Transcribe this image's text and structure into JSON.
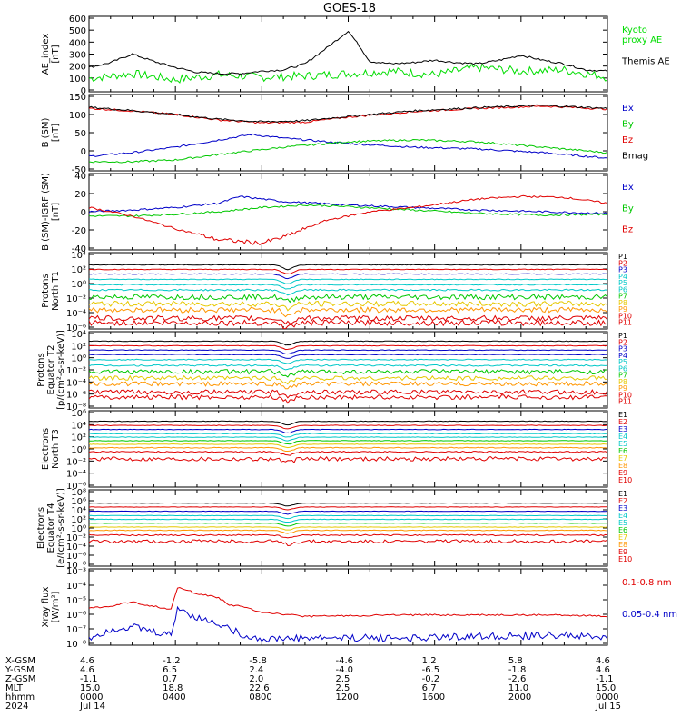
{
  "title": "GOES-18",
  "colors": {
    "black": "#000000",
    "red": "#e00000",
    "green": "#00c800",
    "blue": "#0000c8",
    "kyoto": "#00dd00",
    "cyan": "#00c8c8",
    "yellow": "#e6c800",
    "orange": "#ff9600"
  },
  "chart_data": [
    {
      "type": "line",
      "id": "ae",
      "ylabel": "AE_index\n[nT]",
      "yticks": [
        "600",
        "500",
        "400",
        "300",
        "200",
        "100",
        "0"
      ],
      "ylim": [
        0,
        620
      ],
      "series": [
        {
          "name": "Kyoto\nproxy AE",
          "color": "#00dd00",
          "points": [
            [
              0,
              110
            ],
            [
              2,
              150
            ],
            [
              4,
              100
            ],
            [
              6,
              140
            ],
            [
              8,
              120
            ],
            [
              10,
              130
            ],
            [
              12,
              150
            ],
            [
              14,
              170
            ],
            [
              16,
              140
            ],
            [
              18,
              200
            ],
            [
              20,
              170
            ],
            [
              22,
              180
            ],
            [
              24,
              120
            ]
          ]
        },
        {
          "name": "Themis AE",
          "color": "#000000",
          "points": [
            [
              0,
              200
            ],
            [
              1,
              240
            ],
            [
              2,
              310
            ],
            [
              3,
              250
            ],
            [
              4,
              200
            ],
            [
              5,
              160
            ],
            [
              6,
              150
            ],
            [
              7,
              150
            ],
            [
              8,
              170
            ],
            [
              9,
              180
            ],
            [
              10,
              230
            ],
            [
              11,
              360
            ],
            [
              12,
              500
            ],
            [
              12.5,
              380
            ],
            [
              13,
              250
            ],
            [
              14,
              230
            ],
            [
              15,
              240
            ],
            [
              16,
              260
            ],
            [
              17,
              240
            ],
            [
              18,
              230
            ],
            [
              19,
              260
            ],
            [
              20,
              300
            ],
            [
              21,
              260
            ],
            [
              22,
              230
            ],
            [
              23,
              180
            ],
            [
              24,
              170
            ]
          ]
        }
      ]
    },
    {
      "type": "line",
      "id": "b",
      "ylabel": "B (SM)\n[nT]",
      "yticks": [
        "150",
        "100",
        "50",
        "0",
        "-50"
      ],
      "ylim": [
        -60,
        150
      ],
      "series": [
        {
          "name": "Bx",
          "color": "#0000c8",
          "points": [
            [
              0,
              -20
            ],
            [
              2,
              -10
            ],
            [
              4,
              5
            ],
            [
              6,
              25
            ],
            [
              7.5,
              40
            ],
            [
              9,
              30
            ],
            [
              12,
              15
            ],
            [
              15,
              5
            ],
            [
              18,
              0
            ],
            [
              21,
              -10
            ],
            [
              24,
              -25
            ]
          ]
        },
        {
          "name": "By",
          "color": "#00c800",
          "points": [
            [
              0,
              -35
            ],
            [
              2,
              -35
            ],
            [
              4,
              -30
            ],
            [
              6,
              -15
            ],
            [
              9,
              5
            ],
            [
              12,
              20
            ],
            [
              15,
              25
            ],
            [
              18,
              20
            ],
            [
              21,
              5
            ],
            [
              24,
              -10
            ]
          ]
        },
        {
          "name": "Bz",
          "color": "#e00000",
          "points": [
            [
              0,
              112
            ],
            [
              2,
              105
            ],
            [
              4,
              95
            ],
            [
              6,
              80
            ],
            [
              8,
              72
            ],
            [
              10,
              74
            ],
            [
              12,
              88
            ],
            [
              15,
              103
            ],
            [
              18,
              112
            ],
            [
              21,
              118
            ],
            [
              24,
              110
            ]
          ]
        },
        {
          "name": "Bmag",
          "color": "#000000",
          "points": [
            [
              0,
              115
            ],
            [
              2,
              106
            ],
            [
              4,
              95
            ],
            [
              6,
              82
            ],
            [
              8,
              75
            ],
            [
              10,
              78
            ],
            [
              12,
              90
            ],
            [
              15,
              105
            ],
            [
              18,
              114
            ],
            [
              21,
              120
            ],
            [
              24,
              112
            ]
          ]
        }
      ]
    },
    {
      "type": "line",
      "id": "bdiff",
      "ylabel": "B (SM)-IGRF (SM)\n[nT]",
      "yticks": [
        "40",
        "20",
        "0",
        "-20",
        "-40"
      ],
      "ylim": [
        -45,
        45
      ],
      "series": [
        {
          "name": "Bx",
          "color": "#0000c8",
          "points": [
            [
              0,
              0
            ],
            [
              2,
              2
            ],
            [
              4,
              5
            ],
            [
              6,
              10
            ],
            [
              7,
              18
            ],
            [
              8,
              15
            ],
            [
              9,
              12
            ],
            [
              12,
              8
            ],
            [
              15,
              5
            ],
            [
              18,
              2
            ],
            [
              21,
              0
            ],
            [
              24,
              -2
            ]
          ]
        },
        {
          "name": "By",
          "color": "#00c800",
          "points": [
            [
              0,
              -5
            ],
            [
              2,
              -5
            ],
            [
              4,
              -3
            ],
            [
              6,
              0
            ],
            [
              8,
              5
            ],
            [
              10,
              8
            ],
            [
              12,
              6
            ],
            [
              15,
              2
            ],
            [
              18,
              -2
            ],
            [
              21,
              -4
            ],
            [
              24,
              -3
            ]
          ]
        },
        {
          "name": "Bz",
          "color": "#e00000",
          "points": [
            [
              0,
              5
            ],
            [
              2,
              -5
            ],
            [
              4,
              -20
            ],
            [
              6,
              -33
            ],
            [
              8,
              -37
            ],
            [
              9,
              -30
            ],
            [
              11,
              -10
            ],
            [
              13,
              0
            ],
            [
              15,
              5
            ],
            [
              18,
              15
            ],
            [
              20,
              18
            ],
            [
              22,
              17
            ],
            [
              24,
              10
            ]
          ]
        }
      ]
    },
    {
      "type": "line",
      "id": "pn",
      "ylabel": "Protons\nNorth T1",
      "yticks": [
        "10⁴",
        "10²",
        "10⁰",
        "10⁻²",
        "10⁻⁴",
        "10⁻⁶"
      ],
      "ylim": [
        -6,
        4
      ],
      "log": true,
      "series": [
        {
          "name": "P1",
          "color": "#000000",
          "level": 2.4
        },
        {
          "name": "P2",
          "color": "#e00000",
          "level": 1.8
        },
        {
          "name": "P3",
          "color": "#0000c8",
          "level": 1.2
        },
        {
          "name": "P4",
          "color": "#00c8c8",
          "level": 0.5
        },
        {
          "name": "P5",
          "color": "#00c8c8",
          "level": -0.2
        },
        {
          "name": "P6",
          "color": "#00c8c8",
          "level": -0.9
        },
        {
          "name": "P7",
          "color": "#00c800",
          "level": -1.8
        },
        {
          "name": "P8",
          "color": "#e6c800",
          "level": -2.7
        },
        {
          "name": "P9",
          "color": "#ff9600",
          "level": -3.5
        },
        {
          "name": "P10",
          "color": "#e00000",
          "level": -4.6
        },
        {
          "name": "P11",
          "color": "#e00000",
          "level": -5.2
        }
      ]
    },
    {
      "type": "line",
      "id": "pe",
      "ylabel": "Protons\nEquator T2\n[p/(cm²-s-sr-keV)]",
      "yticks": [
        "10⁴",
        "10²",
        "10⁰",
        "10⁻²",
        "10⁻⁴",
        "10⁻⁶",
        "10⁻⁸"
      ],
      "ylim": [
        -8,
        4
      ],
      "log": true,
      "series": [
        {
          "name": "P1",
          "color": "#000000",
          "level": 2.5
        },
        {
          "name": "P2",
          "color": "#e00000",
          "level": 1.8
        },
        {
          "name": "P3",
          "color": "#0000c8",
          "level": 1.1
        },
        {
          "name": "P4",
          "color": "#0000c8",
          "level": 0.4
        },
        {
          "name": "P5",
          "color": "#00c8c8",
          "level": -0.4
        },
        {
          "name": "P6",
          "color": "#00c8c8",
          "level": -1.3
        },
        {
          "name": "P7",
          "color": "#00c800",
          "level": -2.3
        },
        {
          "name": "P8",
          "color": "#e6c800",
          "level": -3.3
        },
        {
          "name": "P9",
          "color": "#ff9600",
          "level": -4.2
        },
        {
          "name": "P10",
          "color": "#e00000",
          "level": -5.5
        },
        {
          "name": "P11",
          "color": "#e00000",
          "level": -6.3
        }
      ]
    },
    {
      "type": "line",
      "id": "en",
      "ylabel": "Electrons\nNorth T3",
      "yticks": [
        "10⁶",
        "10⁴",
        "10²",
        "10⁰",
        "10⁻²",
        "10⁻⁴",
        "10⁻⁶"
      ],
      "ylim": [
        -7,
        6
      ],
      "log": true,
      "series": [
        {
          "name": "E1",
          "color": "#000000",
          "level": 4.2
        },
        {
          "name": "E2",
          "color": "#e00000",
          "level": 3.5
        },
        {
          "name": "E3",
          "color": "#0000c8",
          "level": 2.8
        },
        {
          "name": "E4",
          "color": "#00c8c8",
          "level": 2.1
        },
        {
          "name": "E5",
          "color": "#00c8c8",
          "level": 1.5
        },
        {
          "name": "E6",
          "color": "#00c800",
          "level": 0.9
        },
        {
          "name": "E7",
          "color": "#e6c800",
          "level": 0.3
        },
        {
          "name": "E8",
          "color": "#ff9600",
          "level": -0.3
        },
        {
          "name": "E9",
          "color": "#e00000",
          "level": -1.0
        },
        {
          "name": "E10",
          "color": "#e00000",
          "level": -2.2
        }
      ]
    },
    {
      "type": "line",
      "id": "ee",
      "ylabel": "Electrons\nEquator T4\n[e/(cm²-s-sr-keV)]",
      "yticks": [
        "10⁸",
        "10⁶",
        "10⁴",
        "10²",
        "10⁰",
        "10⁻²",
        "10⁻⁴",
        "10⁻⁶",
        "10⁻⁸"
      ],
      "ylim": [
        -8,
        8
      ],
      "log": true,
      "series": [
        {
          "name": "E1",
          "color": "#000000",
          "level": 5.2
        },
        {
          "name": "E2",
          "color": "#e00000",
          "level": 4.4
        },
        {
          "name": "E3",
          "color": "#0000c8",
          "level": 3.5
        },
        {
          "name": "E4",
          "color": "#00c8c8",
          "level": 2.6
        },
        {
          "name": "E5",
          "color": "#00c8c8",
          "level": 1.8
        },
        {
          "name": "E6",
          "color": "#00c800",
          "level": 1.0
        },
        {
          "name": "E7",
          "color": "#e6c800",
          "level": 0.2
        },
        {
          "name": "E8",
          "color": "#ff9600",
          "level": -0.5
        },
        {
          "name": "E9",
          "color": "#e00000",
          "level": -1.5
        },
        {
          "name": "E10",
          "color": "#e00000",
          "level": -2.8
        }
      ]
    },
    {
      "type": "line",
      "id": "xray",
      "ylabel": "Xray flux\n[W/m²]",
      "yticks": [
        "10⁻³",
        "10⁻⁴",
        "10⁻⁵",
        "10⁻⁶",
        "10⁻⁷",
        "10⁻⁸"
      ],
      "ylim": [
        -8.3,
        -3
      ],
      "log": true,
      "series": [
        {
          "name": "0.1-0.8 nm",
          "color": "#e00000",
          "points": [
            [
              0,
              -5.7
            ],
            [
              1,
              -5.6
            ],
            [
              2,
              -5.3
            ],
            [
              3,
              -5.6
            ],
            [
              3.8,
              -5.8
            ],
            [
              4.1,
              -4.3
            ],
            [
              5,
              -4.7
            ],
            [
              6,
              -5.0
            ],
            [
              6.5,
              -5.5
            ],
            [
              7,
              -5.6
            ],
            [
              8,
              -6.0
            ],
            [
              10,
              -6.3
            ],
            [
              14,
              -6.2
            ],
            [
              18,
              -6.2
            ],
            [
              22,
              -6.2
            ],
            [
              24,
              -6.3
            ]
          ]
        },
        {
          "name": "0.05-0.4 nm",
          "color": "#0000c8",
          "points": [
            [
              0,
              -7.8
            ],
            [
              1,
              -7.2
            ],
            [
              2,
              -7.0
            ],
            [
              3,
              -7.4
            ],
            [
              3.8,
              -7.6
            ],
            [
              4.1,
              -5.7
            ],
            [
              5,
              -6.4
            ],
            [
              6,
              -6.8
            ],
            [
              7,
              -7.5
            ],
            [
              8,
              -7.9
            ],
            [
              10,
              -7.8
            ],
            [
              14,
              -7.8
            ],
            [
              18,
              -7.7
            ],
            [
              22,
              -7.6
            ],
            [
              24,
              -7.8
            ]
          ]
        }
      ]
    }
  ],
  "footer": {
    "row_labels": [
      "X-GSM",
      "Y-GSM",
      "Z-GSM",
      "MLT",
      "hhmm",
      "2024"
    ],
    "columns": [
      [
        "4.6",
        "4.6",
        "-1.1",
        "15.0",
        "0000",
        "Jul 14"
      ],
      [
        "-1.2",
        "6.5",
        "0.7",
        "18.8",
        "0400",
        ""
      ],
      [
        "-5.8",
        "2.4",
        "2.0",
        "22.6",
        "0800",
        ""
      ],
      [
        "-4.6",
        "-4.0",
        "2.5",
        "2.5",
        "1200",
        ""
      ],
      [
        "1.2",
        "-6.5",
        "-0.2",
        "6.7",
        "1600",
        ""
      ],
      [
        "5.8",
        "-1.8",
        "-2.6",
        "11.0",
        "2000",
        ""
      ],
      [
        "4.6",
        "4.6",
        "-1.1",
        "15.0",
        "0000",
        "Jul 15"
      ]
    ]
  }
}
